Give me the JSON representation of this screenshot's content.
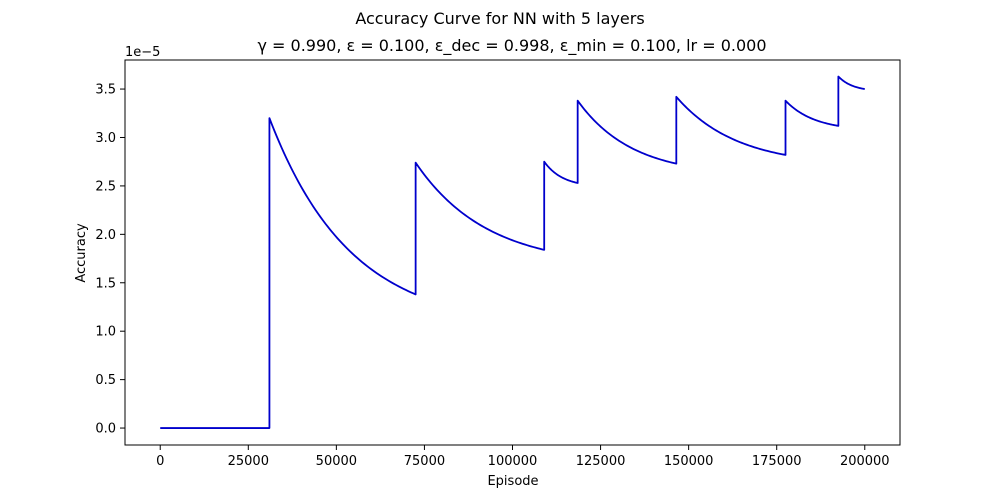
{
  "chart_data": {
    "type": "line",
    "title": "Accuracy Curve for NN with 5 layers",
    "subtitle": "γ = 0.990, ε = 0.100, ε_dec = 0.998, ε_min = 0.100, lr = 0.000",
    "xlabel": "Episode",
    "ylabel": "Accuracy",
    "y_offset_label": "1e−5",
    "xlim": [
      -10000,
      210000
    ],
    "ylim": [
      -0.175,
      3.8
    ],
    "x_ticks": [
      0,
      25000,
      50000,
      75000,
      100000,
      125000,
      150000,
      175000,
      200000
    ],
    "x_tick_labels": [
      "0",
      "25000",
      "50000",
      "75000",
      "100000",
      "125000",
      "150000",
      "175000",
      "200000"
    ],
    "y_ticks": [
      0.0,
      0.5,
      1.0,
      1.5,
      2.0,
      2.5,
      3.0,
      3.5
    ],
    "y_tick_labels": [
      "0.0",
      "0.5",
      "1.0",
      "1.5",
      "2.0",
      "2.5",
      "3.0",
      "3.5"
    ],
    "grid": false,
    "line_color": "#0000cc",
    "series": [
      {
        "segments": [
          {
            "x": [
              0,
              31000
            ],
            "y": [
              0.0,
              0.0
            ]
          },
          {
            "x": [
              31000,
              72500
            ],
            "y": [
              3.2,
              1.38
            ]
          },
          {
            "x": [
              72500,
              109000
            ],
            "y": [
              2.74,
              1.84
            ]
          },
          {
            "x": [
              109000,
              118500
            ],
            "y": [
              2.75,
              2.53
            ]
          },
          {
            "x": [
              118500,
              146500
            ],
            "y": [
              3.38,
              2.73
            ]
          },
          {
            "x": [
              146500,
              177500
            ],
            "y": [
              3.42,
              2.82
            ]
          },
          {
            "x": [
              177500,
              192500
            ],
            "y": [
              3.38,
              3.12
            ]
          },
          {
            "x": [
              192500,
              200000
            ],
            "y": [
              3.63,
              3.5
            ]
          }
        ]
      }
    ]
  }
}
